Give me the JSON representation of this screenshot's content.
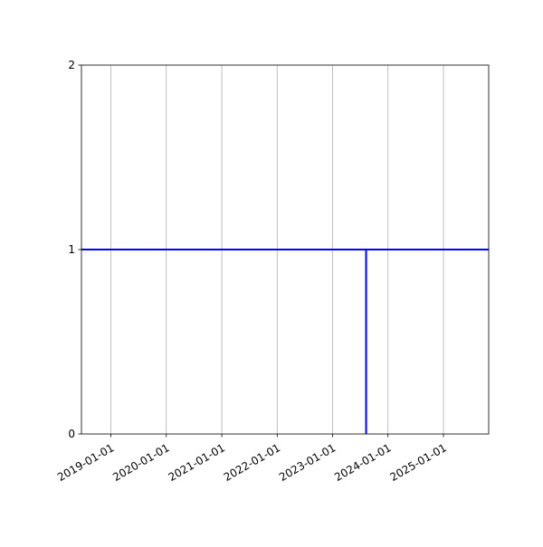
{
  "chart_data": {
    "type": "line",
    "title": "",
    "xlabel": "",
    "ylabel": "",
    "x_axis_type": "date",
    "xlim": [
      "2018-06-21",
      "2025-10-26"
    ],
    "ylim": [
      0,
      2
    ],
    "x_ticks": [
      "2019-01-01",
      "2020-01-01",
      "2021-01-01",
      "2022-01-01",
      "2023-01-01",
      "2024-01-01",
      "2025-01-01"
    ],
    "y_ticks": [
      "0",
      "1",
      "2"
    ],
    "grid": "vertical (x only)",
    "series": [
      {
        "color": "#0000ff",
        "points": [
          {
            "x": "2018-06-21",
            "y": 1
          },
          {
            "x": "2023-08-10",
            "y": 1
          },
          {
            "x": "2023-08-10",
            "y": 0
          },
          {
            "x": "2023-08-10",
            "y": 1
          },
          {
            "x": "2025-10-26",
            "y": 1
          }
        ]
      }
    ]
  }
}
